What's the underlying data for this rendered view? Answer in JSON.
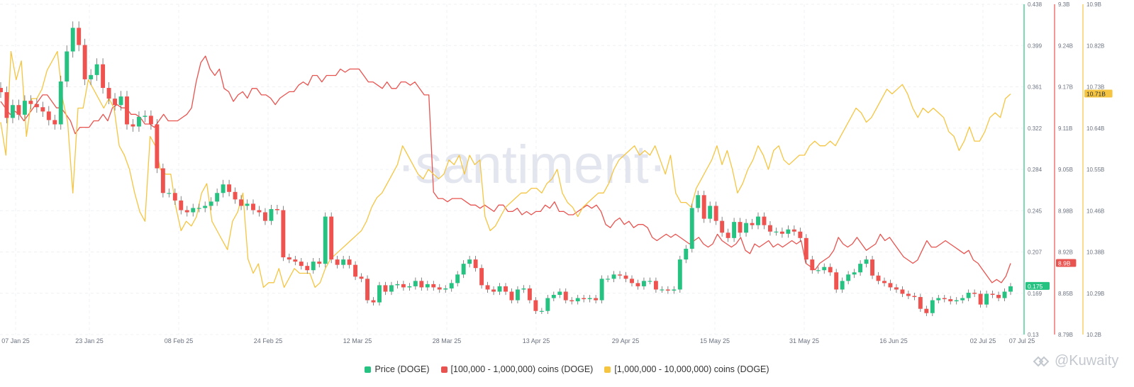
{
  "chart_data": {
    "type": "line",
    "watermark": "·santiment·",
    "logo": "@Kuwaity",
    "x_tick_labels": [
      "07 Jan 25",
      "23 Jan 25",
      "08 Feb 25",
      "24 Feb 25",
      "12 Mar 25",
      "28 Mar 25",
      "13 Apr 25",
      "29 Apr 25",
      "15 May 25",
      "31 May 25",
      "16 Jun 25",
      "02 Jul 25",
      "07 Jul 25"
    ],
    "axes": {
      "price": {
        "ticks": [
          "0.438",
          "0.399",
          "0.361",
          "0.322",
          "0.284",
          "0.245",
          "0.207",
          "0.169",
          "0.13"
        ],
        "min": 0.13,
        "max": 0.438,
        "color": "#26c281",
        "current": "0.175"
      },
      "mid": {
        "ticks": [
          "9.3B",
          "9.24B",
          "9.17B",
          "9.11B",
          "9.05B",
          "8.98B",
          "8.92B",
          "8.85B",
          "8.79B"
        ],
        "min": 8.79,
        "max": 9.3,
        "color": "#e8534f",
        "current": "8.9B"
      },
      "large": {
        "ticks": [
          "10.9B",
          "10.82B",
          "10.73B",
          "10.64B",
          "10.55B",
          "10.46B",
          "10.38B",
          "10.29B",
          "10.2B"
        ],
        "min": 10.2,
        "max": 10.9,
        "color": "#f5c542",
        "current": "10.71B"
      }
    },
    "series": [
      {
        "name": "Price (DOGE)",
        "color": "#26c281",
        "down_color": "#ef5350",
        "values": [
          0.356,
          0.332,
          0.344,
          0.335,
          0.348,
          0.345,
          0.342,
          0.338,
          0.33,
          0.326,
          0.366,
          0.394,
          0.416,
          0.4,
          0.368,
          0.372,
          0.382,
          0.36,
          0.35,
          0.344,
          0.352,
          0.326,
          0.324,
          0.333,
          0.334,
          0.326,
          0.285,
          0.262,
          0.262,
          0.255,
          0.246,
          0.244,
          0.248,
          0.248,
          0.25,
          0.254,
          0.262,
          0.27,
          0.263,
          0.256,
          0.25,
          0.252,
          0.246,
          0.244,
          0.236,
          0.247,
          0.246,
          0.202,
          0.2,
          0.198,
          0.194,
          0.19,
          0.198,
          0.196,
          0.24,
          0.2,
          0.195,
          0.2,
          0.195,
          0.184,
          0.182,
          0.162,
          0.16,
          0.176,
          0.17,
          0.176,
          0.177,
          0.174,
          0.175,
          0.18,
          0.174,
          0.177,
          0.174,
          0.172,
          0.173,
          0.178,
          0.186,
          0.196,
          0.2,
          0.192,
          0.176,
          0.172,
          0.17,
          0.175,
          0.17,
          0.162,
          0.172,
          0.173,
          0.162,
          0.152,
          0.152,
          0.164,
          0.167,
          0.17,
          0.162,
          0.161,
          0.164,
          0.163,
          0.164,
          0.162,
          0.182,
          0.182,
          0.186,
          0.185,
          0.182,
          0.178,
          0.175,
          0.18,
          0.18,
          0.172,
          0.172,
          0.171,
          0.172,
          0.2,
          0.21,
          0.248,
          0.26,
          0.238,
          0.25,
          0.236,
          0.225,
          0.22,
          0.235,
          0.225,
          0.234,
          0.232,
          0.24,
          0.232,
          0.226,
          0.226,
          0.224,
          0.228,
          0.226,
          0.22,
          0.2,
          0.19,
          0.19,
          0.193,
          0.188,
          0.172,
          0.18,
          0.186,
          0.188,
          0.196,
          0.2,
          0.185,
          0.18,
          0.178,
          0.174,
          0.172,
          0.168,
          0.166,
          0.165,
          0.154,
          0.15,
          0.162,
          0.164,
          0.163,
          0.161,
          0.162,
          0.164,
          0.169,
          0.168,
          0.158,
          0.168,
          0.167,
          0.164,
          0.17,
          0.175
        ]
      },
      {
        "name": "[100,000  - 1,000,000) coins (DOGE)",
        "color": "#e8534f",
        "values": [
          9.15,
          9.14,
          9.13,
          9.135,
          9.13,
          9.12,
          9.13,
          9.14,
          9.15,
          9.16,
          9.16,
          9.15,
          9.14,
          9.14,
          9.13,
          9.12,
          9.1,
          9.11,
          9.11,
          9.11,
          9.12,
          9.12,
          9.13,
          9.12,
          9.14,
          9.145,
          9.14,
          9.14,
          9.13,
          9.13,
          9.125,
          9.115,
          9.115,
          9.11,
          9.12,
          9.13,
          9.12,
          9.12,
          9.12,
          9.125,
          9.13,
          9.14,
          9.18,
          9.21,
          9.22,
          9.2,
          9.19,
          9.2,
          9.17,
          9.165,
          9.15,
          9.16,
          9.165,
          9.155,
          9.17,
          9.17,
          9.16,
          9.16,
          9.155,
          9.145,
          9.155,
          9.16,
          9.165,
          9.165,
          9.175,
          9.18,
          9.175,
          9.19,
          9.19,
          9.18,
          9.19,
          9.19,
          9.19,
          9.2,
          9.195,
          9.2,
          9.2,
          9.2,
          9.19,
          9.18,
          9.18,
          9.175,
          9.17,
          9.18,
          9.17,
          9.17,
          9.18,
          9.18,
          9.175,
          9.18,
          9.17,
          9.16,
          9.16,
          9.01,
          9.0,
          9.0,
          8.995,
          9.0,
          9.0,
          9.0,
          8.995,
          8.99,
          8.99,
          8.985,
          8.99,
          8.985,
          8.98,
          8.99,
          8.99,
          8.98,
          8.98,
          8.985,
          8.975,
          8.98,
          8.975,
          8.98,
          8.98,
          8.99,
          8.985,
          8.995,
          8.98,
          8.98,
          8.975,
          8.975,
          8.98,
          8.985,
          8.99,
          8.985,
          8.99,
          8.98,
          8.96,
          8.955,
          8.965,
          8.97,
          8.96,
          8.965,
          8.955,
          8.96,
          8.96,
          8.955,
          8.94,
          8.935,
          8.94,
          8.945,
          8.94,
          8.945,
          8.94,
          8.935,
          8.93,
          8.935,
          8.94,
          8.93,
          8.925,
          8.93,
          8.945,
          8.935,
          8.93,
          8.925,
          8.93,
          8.94,
          8.92,
          8.915,
          8.93,
          8.925,
          8.93,
          8.935,
          8.925,
          8.93,
          8.925,
          8.93,
          8.935,
          8.93,
          8.935,
          8.9,
          8.895,
          8.89,
          8.9,
          8.905,
          8.91,
          8.92,
          8.94,
          8.93,
          8.925,
          8.93,
          8.94,
          8.93,
          8.92,
          8.925,
          8.93,
          8.945,
          8.935,
          8.94,
          8.93,
          8.92,
          8.91,
          8.905,
          8.9,
          8.905,
          8.92,
          8.935,
          8.925,
          8.925,
          8.93,
          8.935,
          8.93,
          8.925,
          8.92,
          8.915,
          8.92,
          8.905,
          8.9,
          8.89,
          8.88,
          8.87,
          8.875,
          8.87,
          8.88,
          8.9
        ]
      },
      {
        "name": "[1,000,000 - 10,000,000) coins (DOGE)",
        "color": "#f5c542",
        "values": [
          10.65,
          10.58,
          10.8,
          10.74,
          10.78,
          10.62,
          10.7,
          10.7,
          10.72,
          10.76,
          10.78,
          10.8,
          10.7,
          10.65,
          10.5,
          10.68,
          10.68,
          10.74,
          10.72,
          10.7,
          10.68,
          10.7,
          10.68,
          10.6,
          10.58,
          10.55,
          10.5,
          10.46,
          10.44,
          10.62,
          10.6,
          10.55,
          10.54,
          10.54,
          10.47,
          10.42,
          10.44,
          10.43,
          10.45,
          10.5,
          10.52,
          10.44,
          10.42,
          10.4,
          10.38,
          10.44,
          10.46,
          10.5,
          10.36,
          10.33,
          10.35,
          10.3,
          10.31,
          10.31,
          10.34,
          10.3,
          10.32,
          10.34,
          10.33,
          10.33,
          10.33,
          10.3,
          10.31,
          10.34,
          10.36,
          10.37,
          10.38,
          10.39,
          10.4,
          10.41,
          10.42,
          10.44,
          10.47,
          10.49,
          10.5,
          10.52,
          10.54,
          10.56,
          10.6,
          10.58,
          10.56,
          10.54,
          10.53,
          10.55,
          10.54,
          10.53,
          10.54,
          10.57,
          10.56,
          10.58,
          10.54,
          10.58,
          10.56,
          10.57,
          10.45,
          10.42,
          10.43,
          10.45,
          10.47,
          10.48,
          10.49,
          10.5,
          10.5,
          10.51,
          10.51,
          10.5,
          10.52,
          10.53,
          10.55,
          10.5,
          10.48,
          10.47,
          10.45,
          10.47,
          10.48,
          10.49,
          10.5,
          10.5,
          10.52,
          10.55,
          10.57,
          10.58,
          10.59,
          10.6,
          10.58,
          10.59,
          10.58,
          10.6,
          10.57,
          10.54,
          10.58,
          10.5,
          10.48,
          10.48,
          10.47,
          10.51,
          10.53,
          10.55,
          10.57,
          10.6,
          10.56,
          10.59,
          10.55,
          10.5,
          10.52,
          10.55,
          10.57,
          10.6,
          10.58,
          10.55,
          10.59,
          10.6,
          10.57,
          10.56,
          10.57,
          10.58,
          10.58,
          10.6,
          10.61,
          10.6,
          10.6,
          10.61,
          10.6,
          10.62,
          10.64,
          10.66,
          10.68,
          10.67,
          10.65,
          10.66,
          10.68,
          10.7,
          10.72,
          10.71,
          10.72,
          10.73,
          10.71,
          10.68,
          10.66,
          10.68,
          10.67,
          10.68,
          10.67,
          10.66,
          10.63,
          10.62,
          10.59,
          10.61,
          10.64,
          10.61,
          10.61,
          10.63,
          10.66,
          10.67,
          10.66,
          10.7,
          10.71
        ]
      }
    ]
  }
}
